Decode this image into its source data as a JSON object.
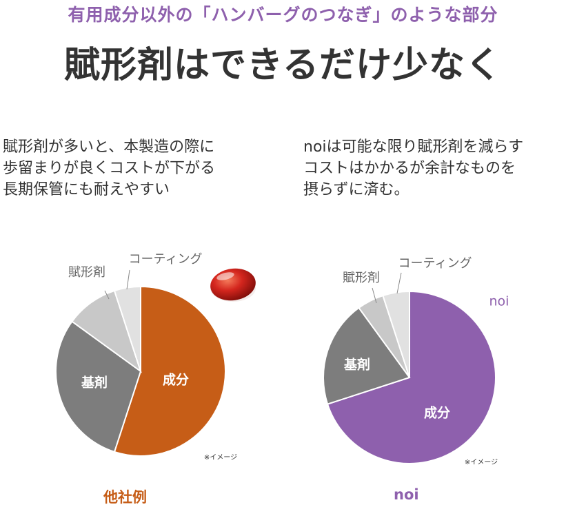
{
  "header": {
    "subtitle": "有用成分以外の「ハンバーグのつなぎ」のような部分",
    "title": "賦形剤はできるだけ少なく"
  },
  "descriptions": {
    "left": [
      "賦形剤が多いと、本製造の際に",
      "歩留まりが良くコストが下がる",
      "長期保管にも耐えやすい"
    ],
    "right": [
      "noiは可能な限り賦形剤を減らす",
      "コストはかかるが余計なものを",
      "摂らずに済む。"
    ]
  },
  "chart_data": [
    {
      "type": "pie",
      "caption": "他社例",
      "note": "※イメージ",
      "slices": [
        {
          "label": "成分",
          "value": 55,
          "color": "#c65d17"
        },
        {
          "label": "基剤",
          "value": 30,
          "color": "#7d7d7d"
        },
        {
          "label": "賦形剤",
          "value": 10,
          "color": "#c8c8c8"
        },
        {
          "label": "コーティング",
          "value": 5,
          "color": "#e1e1e1"
        }
      ]
    },
    {
      "type": "pie",
      "caption": "noi",
      "series_label": "noi",
      "note": "※イメージ",
      "slices": [
        {
          "label": "成分",
          "value": 70,
          "color": "#8e60ad"
        },
        {
          "label": "基剤",
          "value": 20,
          "color": "#7d7d7d"
        },
        {
          "label": "賦形剤",
          "value": 5,
          "color": "#c8c8c8"
        },
        {
          "label": "コーティング",
          "value": 5,
          "color": "#e1e1e1"
        }
      ]
    }
  ],
  "colors": {
    "accent_purple": "#8e60ad",
    "accent_orange": "#c65d17",
    "capsule": "#d4261e"
  }
}
